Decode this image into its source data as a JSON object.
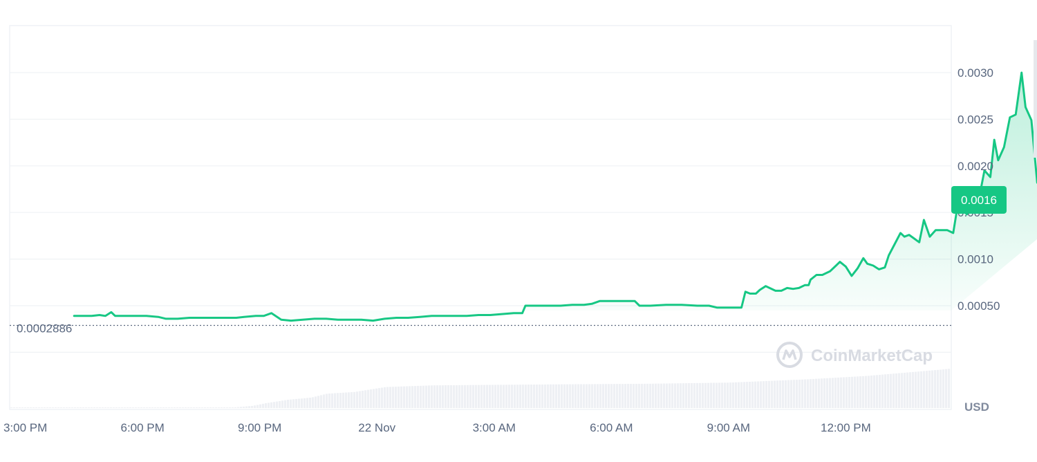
{
  "chart_data": {
    "type": "area",
    "currency": "USD",
    "watermark": "CoinMarketCap",
    "x_tick_labels": [
      "3:00 PM",
      "6:00 PM",
      "9:00 PM",
      "22 Nov",
      "3:00 AM",
      "6:00 AM",
      "9:00 AM",
      "12:00 PM"
    ],
    "x_tick_hours": [
      0,
      3,
      6,
      9,
      12,
      15,
      18,
      21
    ],
    "y_ticks": [
      0.0005,
      0.001,
      0.0015,
      0.002,
      0.0025,
      0.003
    ],
    "y_tick_labels": [
      "0.00050",
      "0.0010",
      "0.0015",
      "0.0020",
      "0.0025",
      "0.0030"
    ],
    "y_range": [
      0.0002,
      0.0035
    ],
    "x_range_hours": [
      -0.4,
      23.7
    ],
    "reference_value": 0.0002886,
    "reference_label": "0.0002886",
    "current_price_label": "0.0016",
    "grid": true,
    "series": [
      {
        "values_price": [
          [
            1.25,
            0.00039
          ],
          [
            1.5,
            0.00039
          ],
          [
            1.7,
            0.00039
          ],
          [
            1.9,
            0.0004
          ],
          [
            2.05,
            0.00039
          ],
          [
            2.2,
            0.00043
          ],
          [
            2.3,
            0.00039
          ],
          [
            2.7,
            0.00039
          ],
          [
            3.1,
            0.00039
          ],
          [
            3.4,
            0.00038
          ],
          [
            3.6,
            0.00036
          ],
          [
            3.9,
            0.00036
          ],
          [
            4.2,
            0.00037
          ],
          [
            4.6,
            0.00037
          ],
          [
            5.0,
            0.00037
          ],
          [
            5.4,
            0.00037
          ],
          [
            5.6,
            0.00038
          ],
          [
            5.9,
            0.00039
          ],
          [
            6.1,
            0.00039
          ],
          [
            6.3,
            0.00042
          ],
          [
            6.55,
            0.00035
          ],
          [
            6.8,
            0.00034
          ],
          [
            7.1,
            0.00035
          ],
          [
            7.4,
            0.00036
          ],
          [
            7.7,
            0.00036
          ],
          [
            8.0,
            0.00035
          ],
          [
            8.3,
            0.00035
          ],
          [
            8.6,
            0.00035
          ],
          [
            8.9,
            0.00034
          ],
          [
            9.2,
            0.00036
          ],
          [
            9.5,
            0.00037
          ],
          [
            9.8,
            0.00037
          ],
          [
            10.1,
            0.00038
          ],
          [
            10.4,
            0.00039
          ],
          [
            10.7,
            0.00039
          ],
          [
            11.0,
            0.00039
          ],
          [
            11.3,
            0.00039
          ],
          [
            11.6,
            0.0004
          ],
          [
            11.9,
            0.0004
          ],
          [
            12.2,
            0.00041
          ],
          [
            12.5,
            0.00042
          ],
          [
            12.72,
            0.00042
          ],
          [
            12.8,
            0.0005
          ],
          [
            13.0,
            0.0005
          ],
          [
            13.4,
            0.0005
          ],
          [
            13.7,
            0.0005
          ],
          [
            14.0,
            0.00051
          ],
          [
            14.3,
            0.00051
          ],
          [
            14.5,
            0.00052
          ],
          [
            14.7,
            0.00055
          ],
          [
            14.9,
            0.00055
          ],
          [
            15.1,
            0.00055
          ],
          [
            15.3,
            0.00055
          ],
          [
            15.6,
            0.00055
          ],
          [
            15.72,
            0.0005
          ],
          [
            16.0,
            0.0005
          ],
          [
            16.4,
            0.00051
          ],
          [
            16.8,
            0.00051
          ],
          [
            17.2,
            0.0005
          ],
          [
            17.5,
            0.0005
          ],
          [
            17.7,
            0.00048
          ],
          [
            18.1,
            0.00048
          ],
          [
            18.33,
            0.00048
          ],
          [
            18.43,
            0.00065
          ],
          [
            18.55,
            0.00063
          ],
          [
            18.7,
            0.00063
          ],
          [
            18.8,
            0.00067
          ],
          [
            18.95,
            0.00071
          ],
          [
            19.05,
            0.00069
          ],
          [
            19.2,
            0.00066
          ],
          [
            19.35,
            0.00066
          ],
          [
            19.5,
            0.00069
          ],
          [
            19.65,
            0.00068
          ],
          [
            19.8,
            0.00069
          ],
          [
            19.95,
            0.00072
          ],
          [
            20.05,
            0.00072
          ],
          [
            20.1,
            0.00078
          ],
          [
            20.25,
            0.00083
          ],
          [
            20.4,
            0.00083
          ],
          [
            20.6,
            0.00087
          ],
          [
            20.75,
            0.00093
          ],
          [
            20.85,
            0.00097
          ],
          [
            21.0,
            0.00092
          ],
          [
            21.15,
            0.00082
          ],
          [
            21.3,
            0.0009
          ],
          [
            21.45,
            0.00101
          ],
          [
            21.55,
            0.00095
          ],
          [
            21.7,
            0.00093
          ],
          [
            21.85,
            0.00089
          ],
          [
            22.0,
            0.00091
          ],
          [
            22.1,
            0.00104
          ],
          [
            22.25,
            0.00116
          ],
          [
            22.4,
            0.00128
          ],
          [
            22.5,
            0.00124
          ],
          [
            22.62,
            0.00126
          ],
          [
            22.75,
            0.00122
          ],
          [
            22.88,
            0.00118
          ],
          [
            23.0,
            0.00142
          ],
          [
            23.15,
            0.00124
          ],
          [
            23.3,
            0.00131
          ],
          [
            23.45,
            0.00131
          ],
          [
            23.6,
            0.00131
          ],
          [
            23.75,
            0.00128
          ],
          [
            23.85,
            0.00154
          ],
          [
            23.95,
            0.00155
          ],
          [
            24.1,
            0.00148
          ],
          [
            24.25,
            0.00157
          ],
          [
            24.4,
            0.00163
          ],
          [
            24.55,
            0.00195
          ],
          [
            24.7,
            0.00188
          ],
          [
            24.8,
            0.00228
          ],
          [
            24.9,
            0.00206
          ],
          [
            25.05,
            0.0022
          ],
          [
            25.2,
            0.00252
          ],
          [
            25.35,
            0.00255
          ],
          [
            25.5,
            0.003
          ],
          [
            25.6,
            0.00263
          ],
          [
            25.75,
            0.00249
          ],
          [
            25.9,
            0.00182
          ],
          [
            26.05,
            0.00204
          ],
          [
            26.2,
            0.00193
          ],
          [
            26.4,
            0.00191
          ],
          [
            26.6,
            0.00162
          ],
          [
            26.8,
            0.00147
          ],
          [
            26.95,
            0.00172
          ],
          [
            27.05,
            0.00181
          ],
          [
            27.15,
            0.00165
          ]
        ],
        "volume_profile": [
          [
            0,
            0.01
          ],
          [
            5.3,
            0.01
          ],
          [
            5.8,
            0.04
          ],
          [
            6.15,
            0.09
          ],
          [
            6.7,
            0.15
          ],
          [
            7.3,
            0.19
          ],
          [
            7.7,
            0.26
          ],
          [
            8.4,
            0.29
          ],
          [
            9.2,
            0.38
          ],
          [
            10.4,
            0.41
          ],
          [
            12,
            0.42
          ],
          [
            14,
            0.43
          ],
          [
            16,
            0.44
          ],
          [
            18,
            0.46
          ],
          [
            20,
            0.52
          ],
          [
            21.5,
            0.58
          ],
          [
            22.5,
            0.64
          ],
          [
            23.5,
            0.7
          ],
          [
            24.5,
            0.78
          ],
          [
            25.3,
            0.88
          ],
          [
            26,
            0.96
          ],
          [
            27.4,
            1.0
          ]
        ]
      }
    ]
  }
}
